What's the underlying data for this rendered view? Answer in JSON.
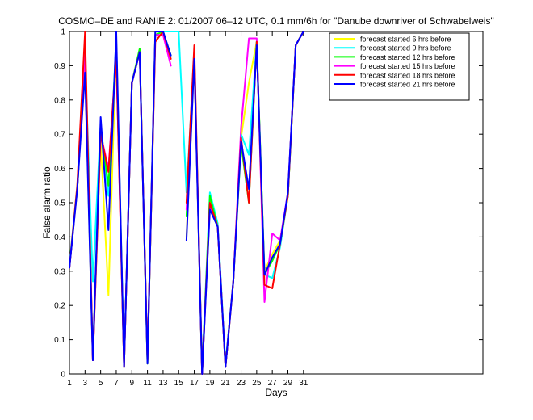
{
  "chart_data": {
    "type": "line",
    "title": "COSMO–DE and RANIE 2: 01/2007 06–12 UTC, 0.1 mm/6h for \"Danube downriver of Schwabelweis\"",
    "xlabel": "Days",
    "ylabel": "False alarm ratio",
    "xlim": [
      1,
      54
    ],
    "ylim": [
      0,
      1
    ],
    "xticks": [
      "1",
      "3",
      "5",
      "7",
      "9",
      "11",
      "13",
      "15",
      "17",
      "19",
      "21",
      "23",
      "25",
      "27",
      "29",
      "31"
    ],
    "yticks": [
      "0",
      "0.1",
      "0.2",
      "0.3",
      "0.4",
      "0.5",
      "0.6",
      "0.7",
      "0.8",
      "0.9",
      "1"
    ],
    "x": [
      1,
      2,
      3,
      4,
      5,
      6,
      7,
      8,
      9,
      10,
      11,
      12,
      13,
      14,
      15,
      16,
      17,
      18,
      19,
      20,
      21,
      22,
      23,
      24,
      25,
      26,
      27,
      28,
      29,
      30,
      31
    ],
    "grid": false,
    "legend_position": "top-right",
    "series": [
      {
        "name": "forecast started 6 hrs before",
        "color": "#ffff00",
        "values": [
          0.32,
          0.55,
          0.9,
          0.04,
          0.68,
          0.23,
          0.97,
          0.02,
          0.85,
          0.94,
          0.03,
          1.0,
          1.0,
          1.0,
          null,
          0.4,
          0.92,
          0.0,
          0.51,
          0.43,
          0.02,
          0.27,
          0.69,
          0.85,
          0.97,
          0.3,
          0.35,
          0.39,
          0.52,
          0.96,
          1.0
        ]
      },
      {
        "name": "forecast started 9 hrs before",
        "color": "#00ffff",
        "values": [
          0.32,
          0.54,
          0.92,
          0.27,
          0.73,
          0.52,
          0.98,
          0.03,
          0.85,
          0.94,
          0.04,
          0.99,
          1.0,
          1.0,
          1.0,
          0.53,
          0.93,
          0.01,
          0.53,
          0.44,
          0.03,
          0.27,
          0.7,
          0.64,
          0.97,
          0.29,
          0.28,
          0.37,
          0.52,
          0.96,
          1.0
        ]
      },
      {
        "name": "forecast started 12 hrs before",
        "color": "#00ff00",
        "values": [
          0.31,
          0.54,
          0.91,
          0.05,
          0.72,
          0.55,
          0.96,
          0.02,
          0.85,
          0.95,
          0.03,
          0.99,
          1.0,
          0.93,
          null,
          0.46,
          0.94,
          0.0,
          0.52,
          0.43,
          0.02,
          0.27,
          0.67,
          0.5,
          0.97,
          0.29,
          0.33,
          0.38,
          0.52,
          0.96,
          1.0
        ]
      },
      {
        "name": "forecast started 15 hrs before",
        "color": "#ff00ff",
        "values": [
          0.31,
          0.54,
          0.94,
          0.04,
          0.7,
          0.6,
          0.93,
          0.02,
          0.85,
          0.94,
          0.04,
          0.99,
          0.99,
          0.9,
          null,
          0.48,
          0.93,
          0.0,
          0.49,
          0.43,
          0.02,
          0.27,
          0.72,
          0.98,
          0.98,
          0.21,
          0.41,
          0.39,
          0.53,
          0.96,
          1.0
        ]
      },
      {
        "name": "forecast started 18 hrs before",
        "color": "#ff0000",
        "values": [
          0.31,
          0.55,
          1.0,
          0.04,
          0.7,
          0.59,
          0.93,
          0.02,
          0.85,
          0.94,
          0.04,
          0.97,
          1.0,
          0.92,
          null,
          0.5,
          0.96,
          0.0,
          0.5,
          0.43,
          0.02,
          0.27,
          0.69,
          0.5,
          0.97,
          0.26,
          0.25,
          0.38,
          0.52,
          0.96,
          1.0
        ]
      },
      {
        "name": "forecast started 21 hrs before",
        "color": "#0000ff",
        "values": [
          0.31,
          0.54,
          0.88,
          0.04,
          0.75,
          0.42,
          1.0,
          0.02,
          0.85,
          0.94,
          0.03,
          1.0,
          1.0,
          0.93,
          null,
          0.39,
          0.92,
          0.0,
          0.48,
          0.43,
          0.02,
          0.27,
          0.68,
          0.54,
          0.96,
          0.29,
          0.34,
          0.38,
          0.53,
          0.96,
          1.0
        ]
      }
    ]
  }
}
